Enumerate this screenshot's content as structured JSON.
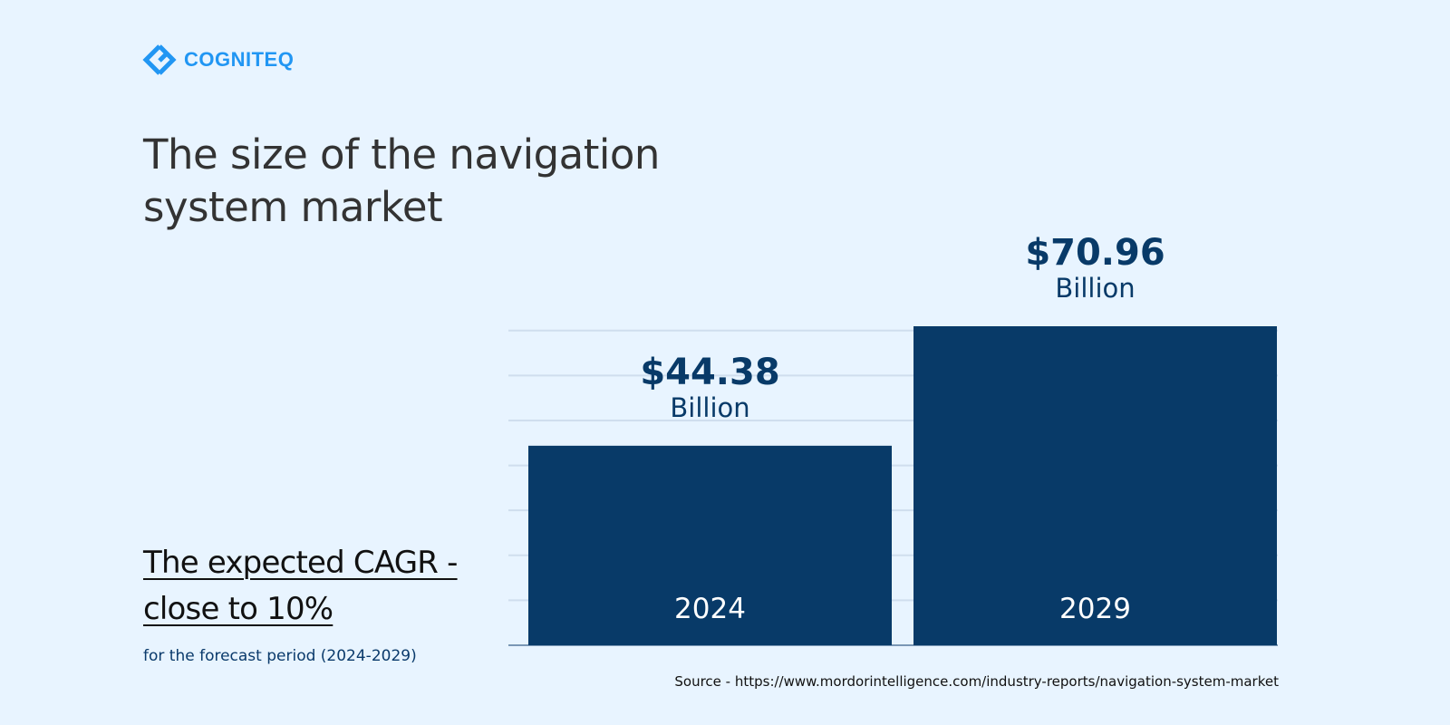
{
  "brand": {
    "name": "COGNITEQ",
    "logo_color": "#2196f3"
  },
  "chart_data": {
    "type": "bar",
    "title": "The size of the navigation system market",
    "categories": [
      "2024",
      "2029"
    ],
    "values": [
      44.38,
      70.96
    ],
    "value_labels": [
      "$44.38",
      "$70.96"
    ],
    "unit_label": "Billion",
    "ylim": [
      0,
      71
    ],
    "grid": true,
    "xlabel": "",
    "ylabel": "",
    "bar_color": "#083a68",
    "grid_color": "#cfdeee"
  },
  "cagr": {
    "line1": "The expected CAGR -",
    "line2": "close to 10%"
  },
  "period": "for the forecast period (2024-2029)",
  "source": "Source - https://www.mordorintelligence.com/industry-reports/navigation-system-market"
}
